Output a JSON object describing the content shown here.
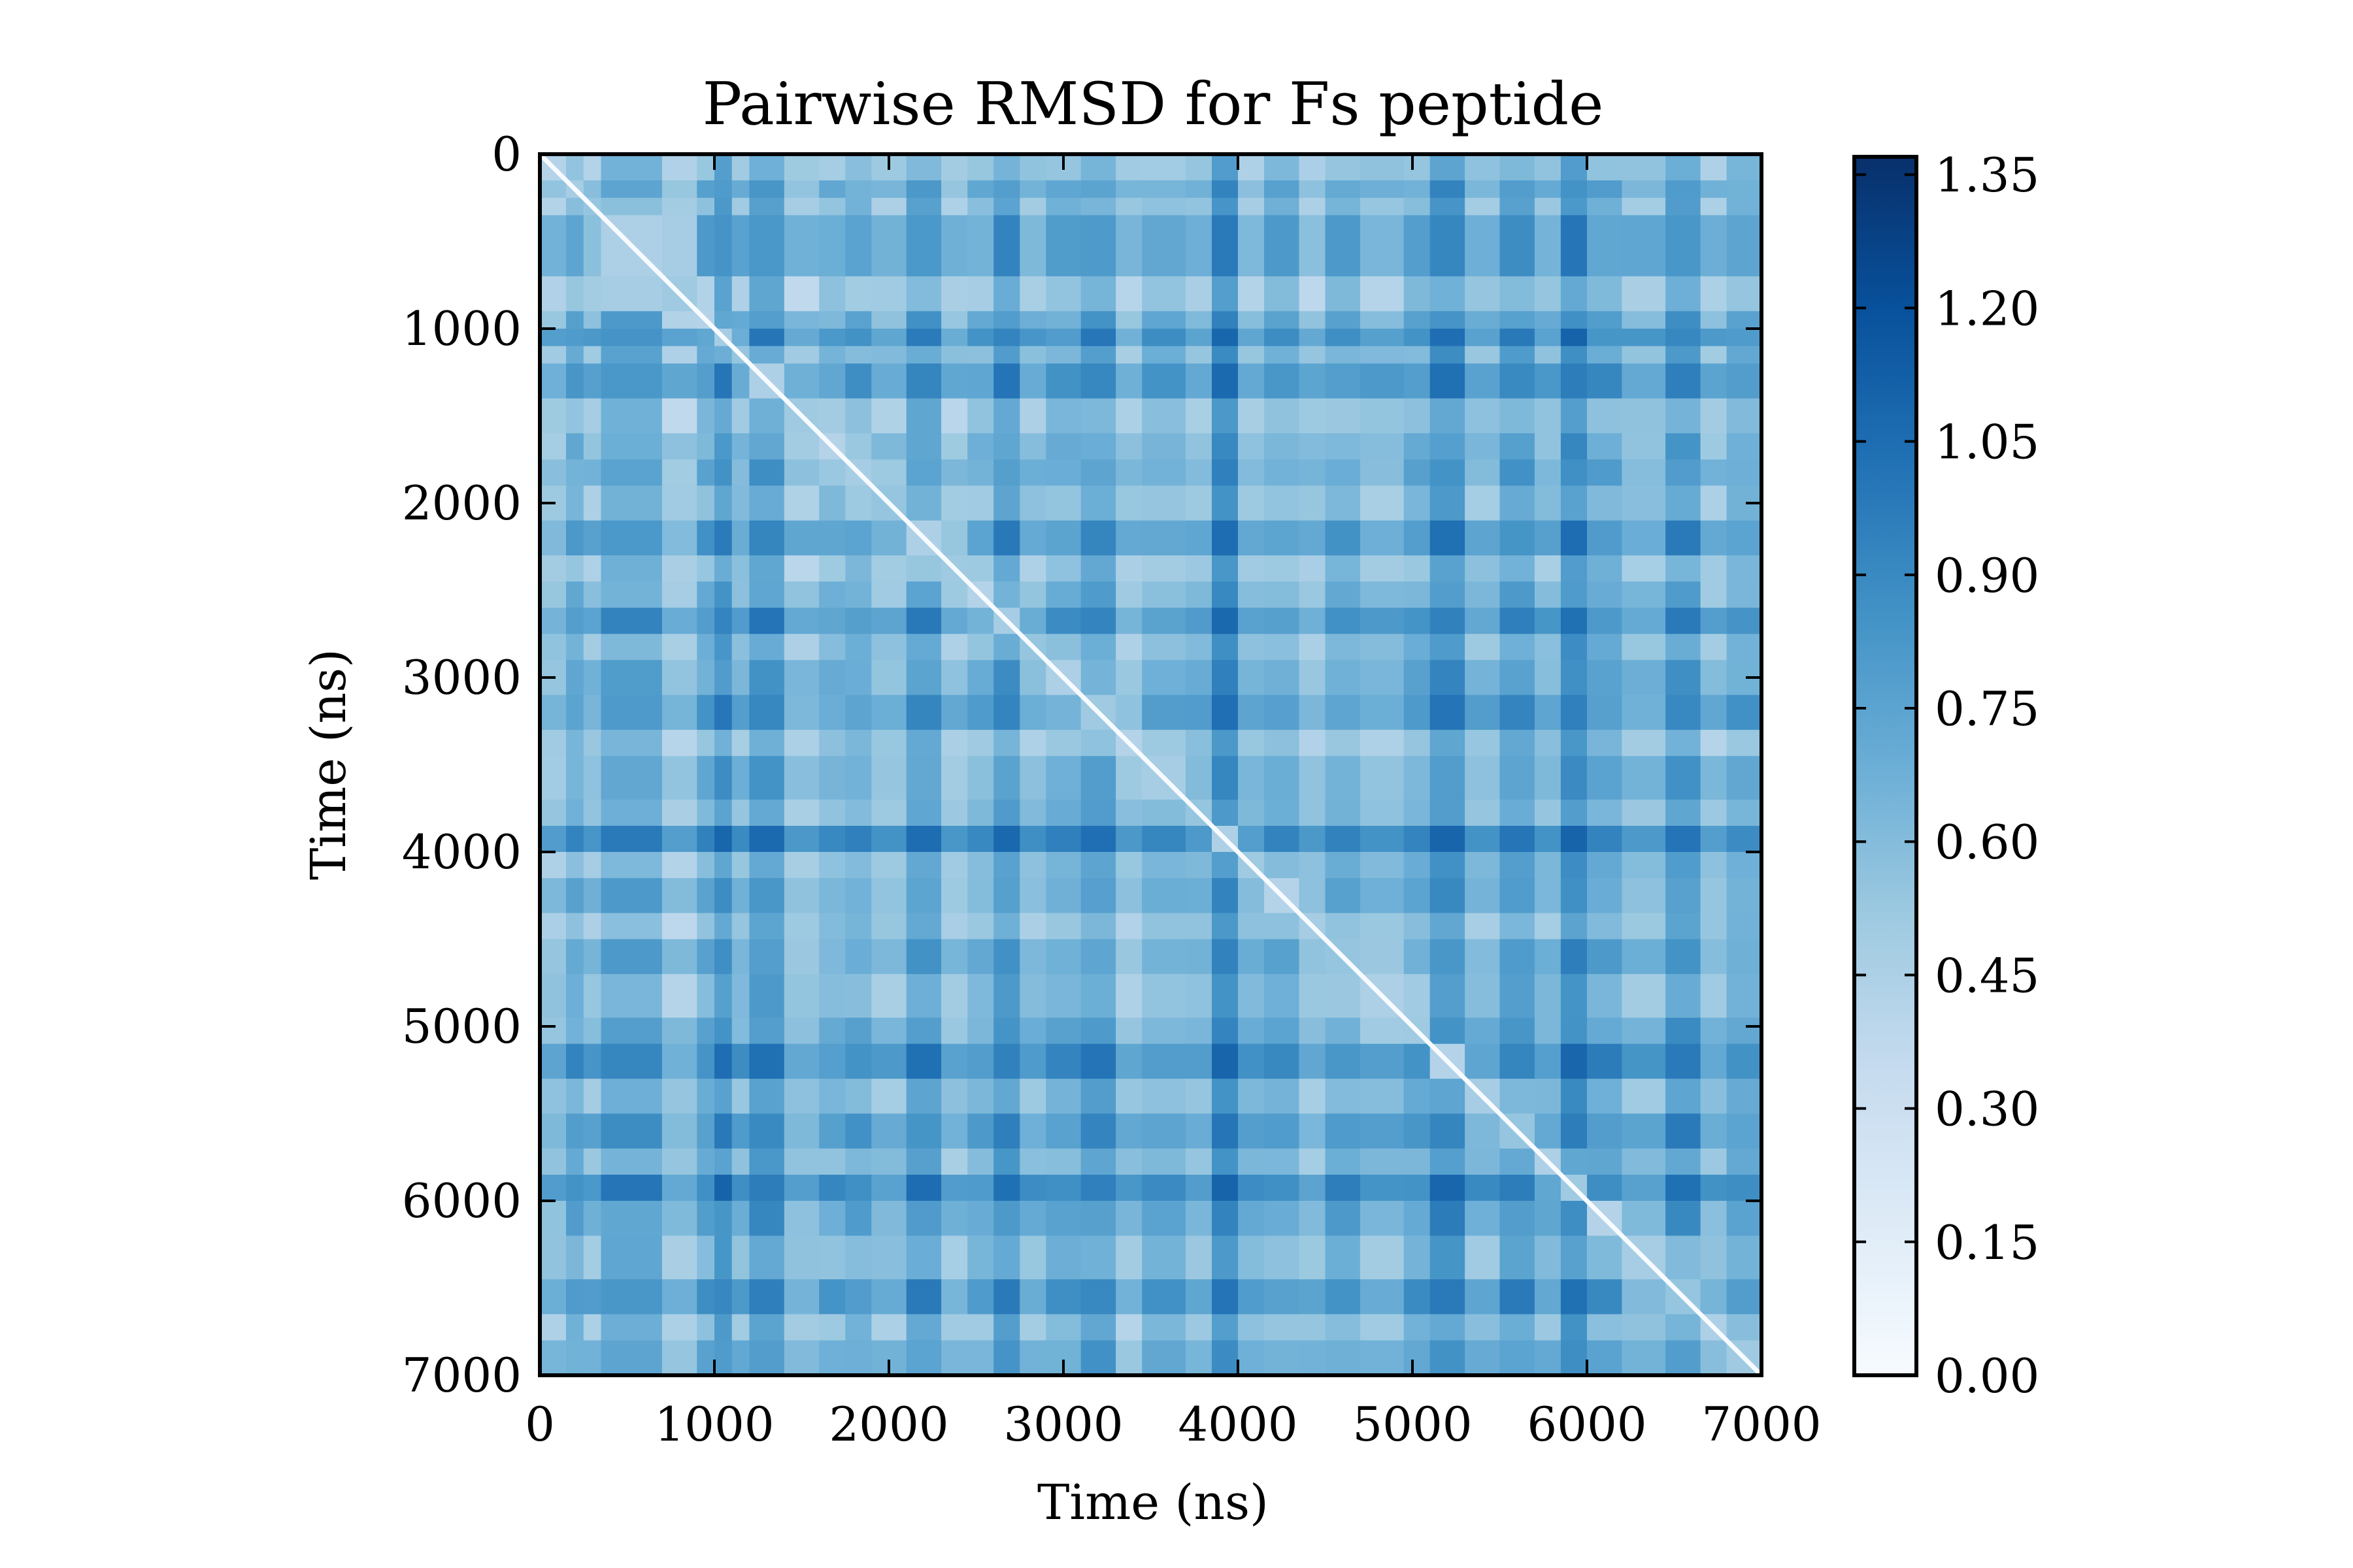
{
  "chart_data": {
    "type": "heatmap",
    "title": "Pairwise RMSD for Fs peptide",
    "xlabel": "Time (ns)",
    "ylabel": "Time (ns)",
    "xlim": [
      0,
      7000
    ],
    "ylim": [
      7000,
      0
    ],
    "x_ticks": [
      "0",
      "1000",
      "2000",
      "3000",
      "4000",
      "5000",
      "6000",
      "7000"
    ],
    "y_ticks": [
      "0",
      "1000",
      "2000",
      "3000",
      "4000",
      "5000",
      "6000",
      "7000"
    ],
    "colormap": "Blues",
    "colorbar": {
      "range": [
        0.0,
        1.37
      ],
      "ticks": [
        "0.00",
        "0.15",
        "0.30",
        "0.45",
        "0.60",
        "0.75",
        "0.90",
        "1.05",
        "1.20",
        "1.35"
      ],
      "colors": [
        "#f7fbff",
        "#deebf7",
        "#c6dbef",
        "#9ecae1",
        "#6baed6",
        "#4292c6",
        "#2171b5",
        "#08519c",
        "#08306b"
      ]
    },
    "matrix_symmetric": true,
    "diagonal_value": 0.0,
    "typical_value": 0.7,
    "segment_edges": [
      0,
      150,
      250,
      350,
      700,
      900,
      1000,
      1100,
      1200,
      1400,
      1600,
      1750,
      1900,
      2100,
      2300,
      2450,
      2600,
      2750,
      2900,
      3100,
      3300,
      3450,
      3700,
      3850,
      4000,
      4150,
      4350,
      4500,
      4700,
      4950,
      5100,
      5300,
      5500,
      5700,
      5850,
      6000,
      6200,
      6450,
      6650,
      6800,
      7000
    ],
    "segment_profile": [
      0.45,
      0.72,
      0.52,
      0.8,
      0.4,
      0.72,
      1.0,
      0.6,
      0.95,
      0.45,
      0.62,
      0.7,
      0.5,
      0.9,
      0.45,
      0.62,
      0.95,
      0.55,
      0.7,
      0.88,
      0.45,
      0.65,
      0.6,
      1.08,
      0.55,
      0.7,
      0.48,
      0.72,
      0.55,
      0.72,
      1.05,
      0.58,
      0.9,
      0.6,
      1.1,
      0.78,
      0.55,
      0.95,
      0.5,
      0.72
    ]
  }
}
